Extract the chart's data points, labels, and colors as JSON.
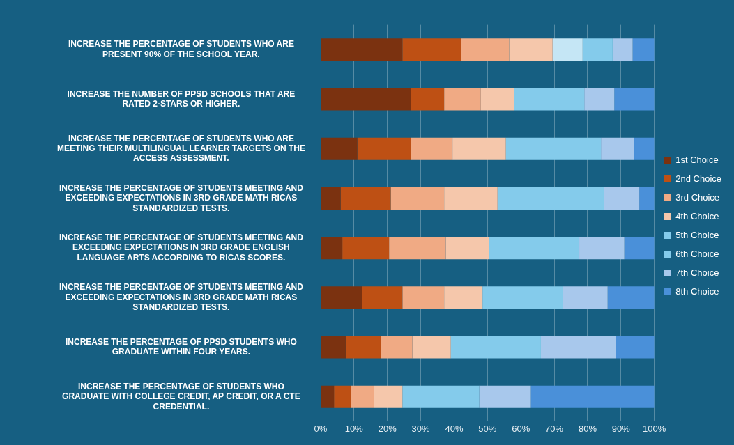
{
  "chart_data": {
    "type": "bar",
    "orientation": "horizontal",
    "stacked": true,
    "categories": [
      "INCREASE THE PERCENTAGE OF STUDENTS WHO ARE PRESENT 90% OF THE SCHOOL YEAR.",
      "INCREASE THE NUMBER OF PPSD SCHOOLS THAT ARE RATED 2-STARS OR HIGHER.",
      "INCREASE THE PERCENTAGE OF STUDENTS WHO ARE MEETING THEIR MULTILINGUAL LEARNER TARGETS ON THE ACCESS ASSESSMENT.",
      "INCREASE THE PERCENTAGE OF STUDENTS MEETING AND EXCEEDING EXPECTATIONS IN 3RD GRADE MATH RICAS STANDARDIZED TESTS.",
      "INCREASE THE PERCENTAGE OF STUDENTS MEETING AND EXCEEDING EXPECTATIONS IN 3RD GRADE ENGLISH LANGUAGE ARTS ACCORDING TO RICAS SCORES.",
      "INCREASE THE PERCENTAGE OF STUDENTS MEETING AND EXCEEDING EXPECTATIONS IN 3RD GRADE MATH RICAS STANDARDIZED TESTS.",
      "INCREASE THE PERCENTAGE OF PPSD STUDENTS WHO GRADUATE WITHIN FOUR YEARS.",
      "INCREASE THE PERCENTAGE OF STUDENTS WHO GRADUATE WITH COLLEGE CREDIT, AP CREDIT, OR A CTE CREDENTIAL."
    ],
    "series": [
      {
        "name": "1st Choice",
        "color": "#7b3210",
        "values": [
          24.5,
          27,
          11,
          6,
          6.5,
          12.5,
          7.5,
          4
        ]
      },
      {
        "name": "2nd Choice",
        "color": "#be5014",
        "values": [
          17.5,
          10,
          16,
          15,
          14,
          12,
          10.5,
          5
        ]
      },
      {
        "name": "3rd Choice",
        "color": "#f0aa84",
        "values": [
          14.5,
          11,
          12.5,
          16,
          17,
          12.5,
          9.5,
          7
        ]
      },
      {
        "name": "4th Choice",
        "color": "#f5c7ab",
        "values": [
          13,
          10,
          16,
          16,
          13,
          11.5,
          11.5,
          8.5
        ]
      },
      {
        "name": "5th Choice",
        "color": "#84cbeb",
        "colors": [
          "#c5e6f5",
          "#84cbeb",
          "#84cbeb",
          "#84cbeb",
          "#84cbeb",
          "#84cbeb",
          "#84cbeb",
          "#84cbeb"
        ],
        "values": [
          9,
          21,
          28.5,
          32,
          27,
          24,
          27,
          23
        ]
      },
      {
        "name": "6th Choice",
        "color": "#84cbeb",
        "values": [
          9,
          0,
          0,
          0,
          0,
          0,
          0,
          0
        ]
      },
      {
        "name": "7th Choice",
        "color": "#a8c8ec",
        "values": [
          6,
          9,
          10,
          10.5,
          13.5,
          13.5,
          22.5,
          15.5
        ]
      },
      {
        "name": "8th Choice",
        "color": "#4a90d9",
        "values": [
          6.5,
          12,
          6,
          4.5,
          9,
          14,
          11.5,
          37
        ]
      }
    ],
    "xlim": [
      0,
      100
    ],
    "xticks": [
      {
        "value": 0,
        "label": "0%"
      },
      {
        "value": 10,
        "label": "10%"
      },
      {
        "value": 20,
        "label": "20%"
      },
      {
        "value": 30,
        "label": "30%"
      },
      {
        "value": 40,
        "label": "40%"
      },
      {
        "value": 50,
        "label": "50%"
      },
      {
        "value": 60,
        "label": "60%"
      },
      {
        "value": 70,
        "label": "70%"
      },
      {
        "value": 80,
        "label": "80%"
      },
      {
        "value": 90,
        "label": "90%"
      },
      {
        "value": 100,
        "label": "100%"
      }
    ],
    "grid": "x",
    "legend": "right"
  }
}
